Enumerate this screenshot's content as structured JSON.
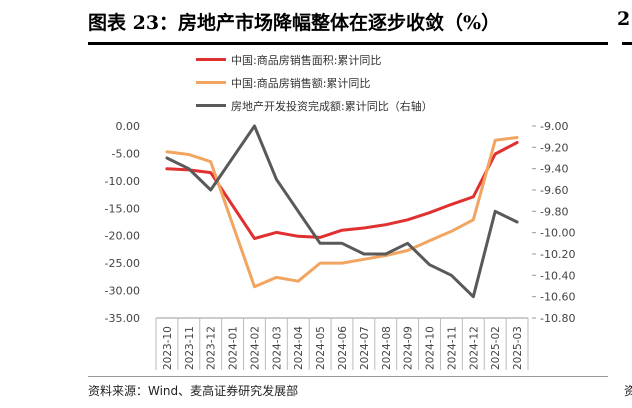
{
  "title": "图表 23：房地产市场降幅整体在逐步收敛（%）",
  "source": "资料来源：Wind、麦高证券研究发展部",
  "edge_fragment": {
    "title_char": "2",
    "footer_char": "资"
  },
  "chart_data": {
    "type": "line",
    "categories": [
      "2023-10",
      "2023-11",
      "2023-12",
      "2024-01",
      "2024-02",
      "2024-03",
      "2024-04",
      "2024-05",
      "2024-06",
      "2024-07",
      "2024-08",
      "2024-09",
      "2024-10",
      "2024-11",
      "2024-12",
      "2025-02",
      "2025-03"
    ],
    "y_left": {
      "min": -35,
      "max": 0,
      "step": 5,
      "tick_labels": [
        "0.00",
        "-5.00",
        "-10.00",
        "-15.00",
        "-20.00",
        "-25.00",
        "-30.00",
        "-35.00"
      ]
    },
    "y_right": {
      "min": -10.8,
      "max": -9.0,
      "step": 0.2,
      "tick_labels": [
        "-9.00",
        "-9.20",
        "-9.40",
        "-9.60",
        "-9.80",
        "-10.00",
        "-10.20",
        "-10.40",
        "-10.60",
        "-10.80"
      ]
    },
    "grid": false,
    "legend_position": "top",
    "series": [
      {
        "name": "中国:商品房销售面积:累计同比",
        "axis": "left",
        "color": "#e03030",
        "values": [
          -7.8,
          -8.0,
          -8.5,
          null,
          -20.5,
          -19.4,
          -20.1,
          -20.3,
          -19.0,
          -18.6,
          -18.0,
          -17.1,
          -15.8,
          -14.3,
          -12.9,
          -5.1,
          -3.0
        ]
      },
      {
        "name": "中国:商品房销售额:累计同比",
        "axis": "left",
        "color": "#f2a560",
        "values": [
          -4.7,
          -5.2,
          -6.5,
          null,
          -29.3,
          -27.6,
          -28.3,
          -25.0,
          -25.0,
          -24.3,
          -23.6,
          -22.7,
          -20.9,
          -19.2,
          -17.1,
          -2.6,
          -2.1
        ]
      },
      {
        "name": "房地产开发投资完成额:累计同比（右轴）",
        "axis": "right",
        "color": "#595959",
        "values": [
          -9.3,
          -9.4,
          -9.6,
          null,
          -9.0,
          -9.5,
          -9.8,
          -10.1,
          -10.1,
          -10.2,
          -10.2,
          -10.1,
          -10.3,
          -10.4,
          -10.6,
          -9.8,
          -9.9
        ]
      }
    ]
  }
}
